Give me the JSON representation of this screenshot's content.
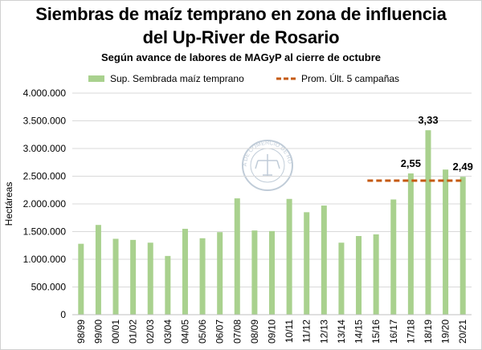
{
  "colors": {
    "bar": "#a9d18e",
    "avg_line": "#c55a11",
    "grid": "#d9d9d9",
    "watermark": "#c0ccd8"
  },
  "watermark_text": "BOLSA DE COMERCIO DE ROSARIO",
  "chart_data": {
    "type": "bar",
    "title_line1": "Siembras de maíz temprano en zona de influencia",
    "title_line2": "del Up-River de Rosario",
    "subtitle": "Según avance de labores de MAGyP al cierre de octubre",
    "ylabel": "Hectáreas",
    "xlabel": "",
    "ylim": [
      0,
      4000000
    ],
    "yticks": [
      0,
      500000,
      1000000,
      1500000,
      2000000,
      2500000,
      3000000,
      3500000,
      4000000
    ],
    "ytick_labels": [
      "0",
      "500.000",
      "1.000.000",
      "1.500.000",
      "2.000.000",
      "2.500.000",
      "3.000.000",
      "3.500.000",
      "4.000.000"
    ],
    "grid": true,
    "legend_position": "top",
    "categories": [
      "98/99",
      "99/00",
      "00/01",
      "01/02",
      "02/03",
      "03/04",
      "04/05",
      "05/06",
      "06/07",
      "07/08",
      "08/09",
      "09/10",
      "10/11",
      "11/12",
      "12/13",
      "13/14",
      "14/15",
      "15/16",
      "16/17",
      "17/18",
      "18/19",
      "19/20",
      "20/21"
    ],
    "series": [
      {
        "name": "Sup. Sembrada maíz temprano",
        "kind": "bar",
        "values": [
          1280000,
          1620000,
          1370000,
          1350000,
          1300000,
          1060000,
          1550000,
          1380000,
          1490000,
          2100000,
          1520000,
          1510000,
          2090000,
          1850000,
          1970000,
          1300000,
          1420000,
          1450000,
          2080000,
          2550000,
          3330000,
          2620000,
          2490000
        ]
      },
      {
        "name": "Prom. Últ. 5 campañas",
        "kind": "line",
        "style": "dashed",
        "value": 2420000,
        "from_category": "15/16",
        "to_category": "20/21"
      }
    ],
    "data_labels": [
      {
        "category": "17/18",
        "text": "2,55"
      },
      {
        "category": "18/19",
        "text": "3,33"
      },
      {
        "category": "20/21",
        "text": "2,49"
      }
    ]
  }
}
